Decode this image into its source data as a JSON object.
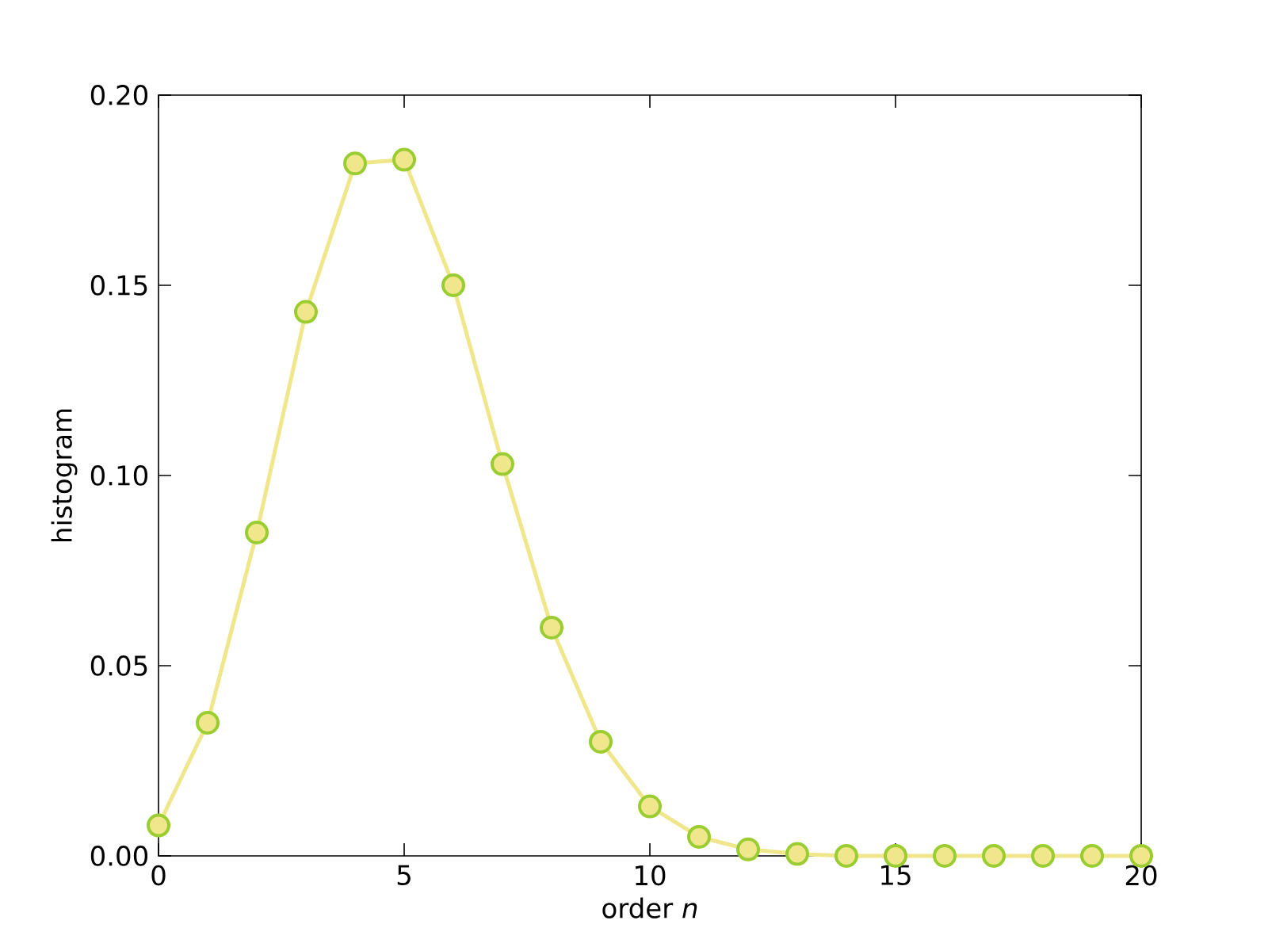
{
  "chart_data": {
    "type": "line",
    "xlabel": "order *n*",
    "ylabel": "histogram",
    "x": [
      0,
      1,
      2,
      3,
      4,
      5,
      6,
      7,
      8,
      9,
      10,
      11,
      12,
      13,
      14,
      15,
      16,
      17,
      18,
      19,
      20
    ],
    "series": [
      {
        "color": "#f0e68c",
        "values": [
          0.008,
          0.035,
          0.085,
          0.143,
          0.182,
          0.183,
          0.15,
          0.103,
          0.06,
          0.03,
          0.013,
          0.005,
          0.0017,
          0.0005,
          0,
          0,
          0,
          0,
          0,
          0,
          0
        ]
      }
    ],
    "xlim": [
      0,
      20
    ],
    "ylim": [
      0,
      0.2
    ],
    "xticks": [
      0,
      5,
      10,
      15,
      20
    ],
    "yticks": [
      {
        "value": 0,
        "label": "0.00"
      },
      {
        "value": 0.05,
        "label": "0.05"
      },
      {
        "value": 0.1,
        "label": "0.10"
      },
      {
        "value": 0.15,
        "label": "0.15"
      },
      {
        "value": 0.2,
        "label": "0.20"
      }
    ],
    "marker": "circle",
    "line_style": "solid",
    "grid": false,
    "legend": false
  }
}
